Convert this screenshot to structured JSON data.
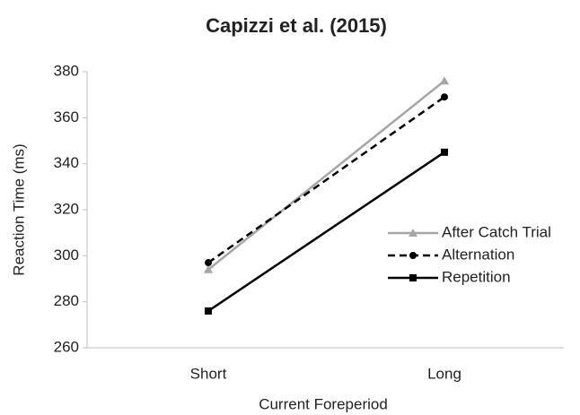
{
  "chart_data": {
    "type": "line",
    "title": "Capizzi et al. (2015)",
    "xlabel": "Current Foreperiod",
    "ylabel": "Reaction Time (ms)",
    "categories": [
      "Short",
      "Long"
    ],
    "series": [
      {
        "name": "After Catch Trial",
        "color": "#a6a6a6",
        "marker": "triangle",
        "dash": false,
        "values": [
          294,
          376
        ]
      },
      {
        "name": "Alternation",
        "color": "#000000",
        "marker": "circle",
        "dash": true,
        "values": [
          297,
          369
        ]
      },
      {
        "name": "Repetition",
        "color": "#000000",
        "marker": "square",
        "dash": false,
        "values": [
          276,
          345
        ]
      }
    ],
    "ylim": [
      260,
      380
    ],
    "yticks": [
      260,
      280,
      300,
      320,
      340,
      360,
      380
    ],
    "grid": false,
    "legend": "right"
  }
}
